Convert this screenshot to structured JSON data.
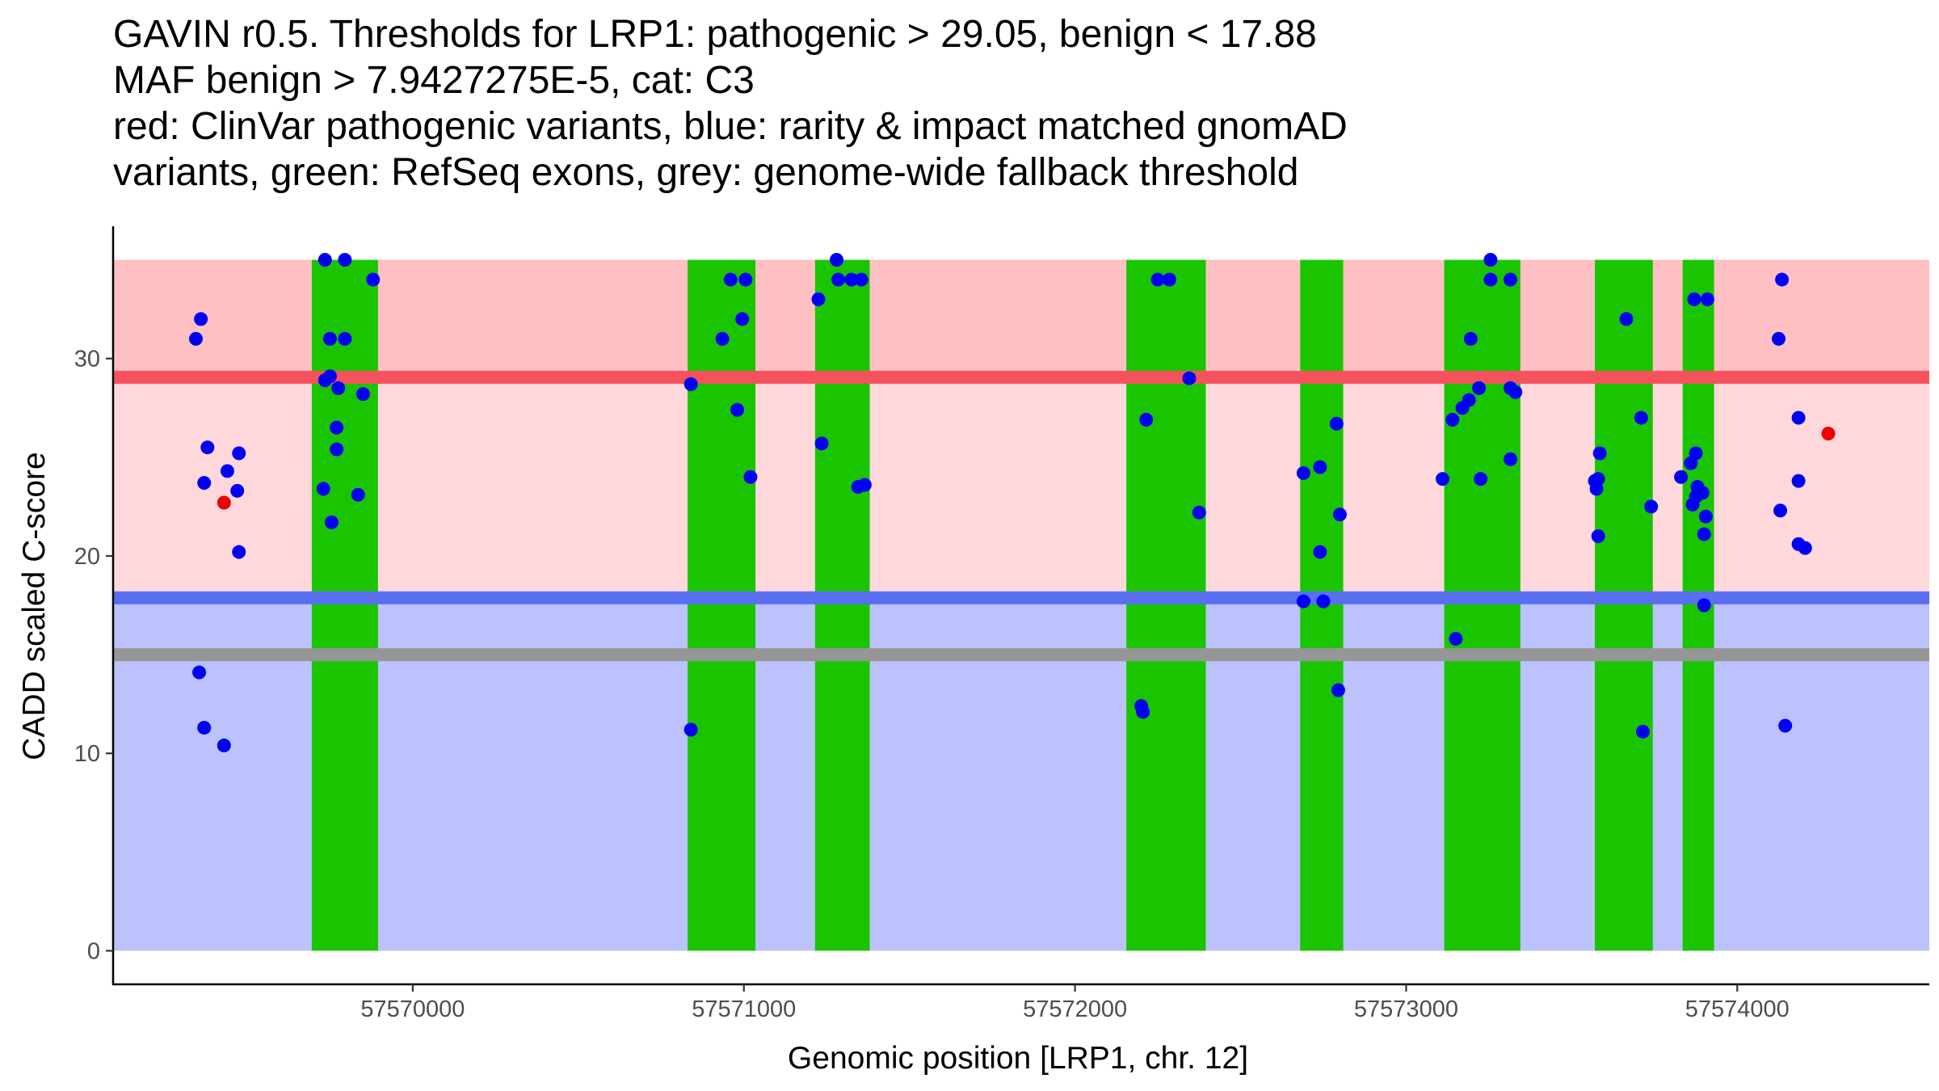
{
  "title_lines": [
    "GAVIN r0.5. Thresholds for LRP1: pathogenic > 29.05, benign < 17.88",
    "MAF benign > 7.9427275E-5, cat: C3",
    "red: ClinVar pathogenic variants, blue: rarity & impact matched gnomAD",
    "variants, green: RefSeq exons, grey: genome-wide fallback threshold"
  ],
  "chart_data": {
    "type": "scatter",
    "xlabel": "Genomic position [LRP1, chr. 12]",
    "ylabel": "CADD scaled C-score",
    "xlim": [
      57569095,
      57574580
    ],
    "ylim": [
      -1.7,
      36.7
    ],
    "x_ticks": [
      57570000,
      57571000,
      57572000,
      57573000,
      57574000
    ],
    "x_tick_labels": [
      "57570000",
      "57571000",
      "57572000",
      "57573000",
      "57574000"
    ],
    "y_ticks": [
      0,
      10,
      20,
      30
    ],
    "y_tick_labels": [
      "0",
      "10",
      "20",
      "30"
    ],
    "thresholds": {
      "pathogenic": 29.05,
      "benign": 17.88,
      "genome_wide_fallback": 15.0,
      "max": 35
    },
    "colors": {
      "pathogenic_band": "#ffc0c4",
      "middle_band": "#ffd8dc",
      "benign_band": "#bcc2fb",
      "pathogenic_line": "#f5525d",
      "benign_line": "#5a6ef0",
      "fallback_line": "#969696",
      "exon": "#1ac500",
      "gnomad_point": "#0000f5",
      "clinvar_point": "#f00000"
    },
    "exons": [
      [
        57569695,
        57569895
      ],
      [
        57570830,
        57571035
      ],
      [
        57571215,
        57571380
      ],
      [
        57572155,
        57572395
      ],
      [
        57572680,
        57572810
      ],
      [
        57573115,
        57573345
      ],
      [
        57573570,
        57573745
      ],
      [
        57573835,
        57573930
      ]
    ],
    "series": [
      {
        "name": "rarity & impact matched gnomAD variants",
        "points": [
          [
            57569345,
            31.0
          ],
          [
            57569360,
            32.0
          ],
          [
            57569370,
            23.7
          ],
          [
            57569380,
            25.5
          ],
          [
            57569355,
            14.1
          ],
          [
            57569370,
            11.3
          ],
          [
            57569430,
            10.4
          ],
          [
            57569440,
            24.3
          ],
          [
            57569470,
            23.3
          ],
          [
            57569475,
            25.2
          ],
          [
            57569475,
            20.2
          ],
          [
            57569735,
            35.0
          ],
          [
            57569795,
            35.0
          ],
          [
            57569750,
            31.0
          ],
          [
            57569795,
            31.0
          ],
          [
            57569735,
            28.9
          ],
          [
            57569750,
            29.1
          ],
          [
            57569775,
            28.5
          ],
          [
            57569770,
            26.5
          ],
          [
            57569770,
            25.4
          ],
          [
            57569730,
            23.4
          ],
          [
            57569850,
            28.2
          ],
          [
            57569880,
            34.0
          ],
          [
            57569835,
            23.1
          ],
          [
            57569755,
            21.7
          ],
          [
            57570840,
            28.7
          ],
          [
            57570840,
            11.2
          ],
          [
            57570935,
            31.0
          ],
          [
            57570960,
            34.0
          ],
          [
            57571005,
            34.0
          ],
          [
            57570995,
            32.0
          ],
          [
            57570980,
            27.4
          ],
          [
            57571020,
            24.0
          ],
          [
            57571225,
            33.0
          ],
          [
            57571235,
            25.7
          ],
          [
            57571280,
            35.0
          ],
          [
            57571285,
            34.0
          ],
          [
            57571325,
            34.0
          ],
          [
            57571355,
            34.0
          ],
          [
            57571345,
            23.5
          ],
          [
            57571365,
            23.6
          ],
          [
            57572250,
            34.0
          ],
          [
            57572285,
            34.0
          ],
          [
            57572345,
            29.0
          ],
          [
            57572215,
            26.9
          ],
          [
            57572375,
            22.2
          ],
          [
            57572200,
            12.4
          ],
          [
            57572205,
            12.1
          ],
          [
            57572690,
            24.2
          ],
          [
            57572740,
            24.5
          ],
          [
            57572790,
            26.7
          ],
          [
            57572800,
            22.1
          ],
          [
            57572740,
            20.2
          ],
          [
            57572690,
            17.7
          ],
          [
            57572750,
            17.7
          ],
          [
            57572795,
            13.2
          ],
          [
            57573255,
            35.0
          ],
          [
            57573255,
            34.0
          ],
          [
            57573315,
            34.0
          ],
          [
            57573195,
            31.0
          ],
          [
            57573220,
            28.5
          ],
          [
            57573315,
            28.5
          ],
          [
            57573330,
            28.3
          ],
          [
            57573190,
            27.9
          ],
          [
            57573170,
            27.5
          ],
          [
            57573140,
            26.9
          ],
          [
            57573110,
            23.9
          ],
          [
            57573225,
            23.9
          ],
          [
            57573315,
            24.9
          ],
          [
            57573150,
            15.8
          ],
          [
            57573665,
            32.0
          ],
          [
            57573710,
            27.0
          ],
          [
            57573585,
            25.2
          ],
          [
            57573570,
            23.8
          ],
          [
            57573580,
            23.9
          ],
          [
            57573575,
            23.4
          ],
          [
            57573740,
            22.5
          ],
          [
            57573580,
            21.0
          ],
          [
            57573715,
            11.1
          ],
          [
            57573870,
            33.0
          ],
          [
            57573910,
            33.0
          ],
          [
            57573875,
            25.2
          ],
          [
            57573860,
            24.7
          ],
          [
            57573830,
            24.0
          ],
          [
            57573880,
            23.5
          ],
          [
            57573895,
            23.2
          ],
          [
            57573875,
            23.0
          ],
          [
            57573865,
            22.6
          ],
          [
            57573905,
            22.0
          ],
          [
            57573900,
            21.1
          ],
          [
            57573900,
            17.5
          ],
          [
            57574135,
            34.0
          ],
          [
            57574125,
            31.0
          ],
          [
            57574185,
            27.0
          ],
          [
            57574185,
            23.8
          ],
          [
            57574130,
            22.3
          ],
          [
            57574185,
            20.6
          ],
          [
            57574205,
            20.4
          ],
          [
            57574145,
            11.4
          ]
        ]
      },
      {
        "name": "ClinVar pathogenic variants",
        "points": [
          [
            57569430,
            22.7
          ],
          [
            57574275,
            26.2
          ]
        ]
      }
    ]
  }
}
